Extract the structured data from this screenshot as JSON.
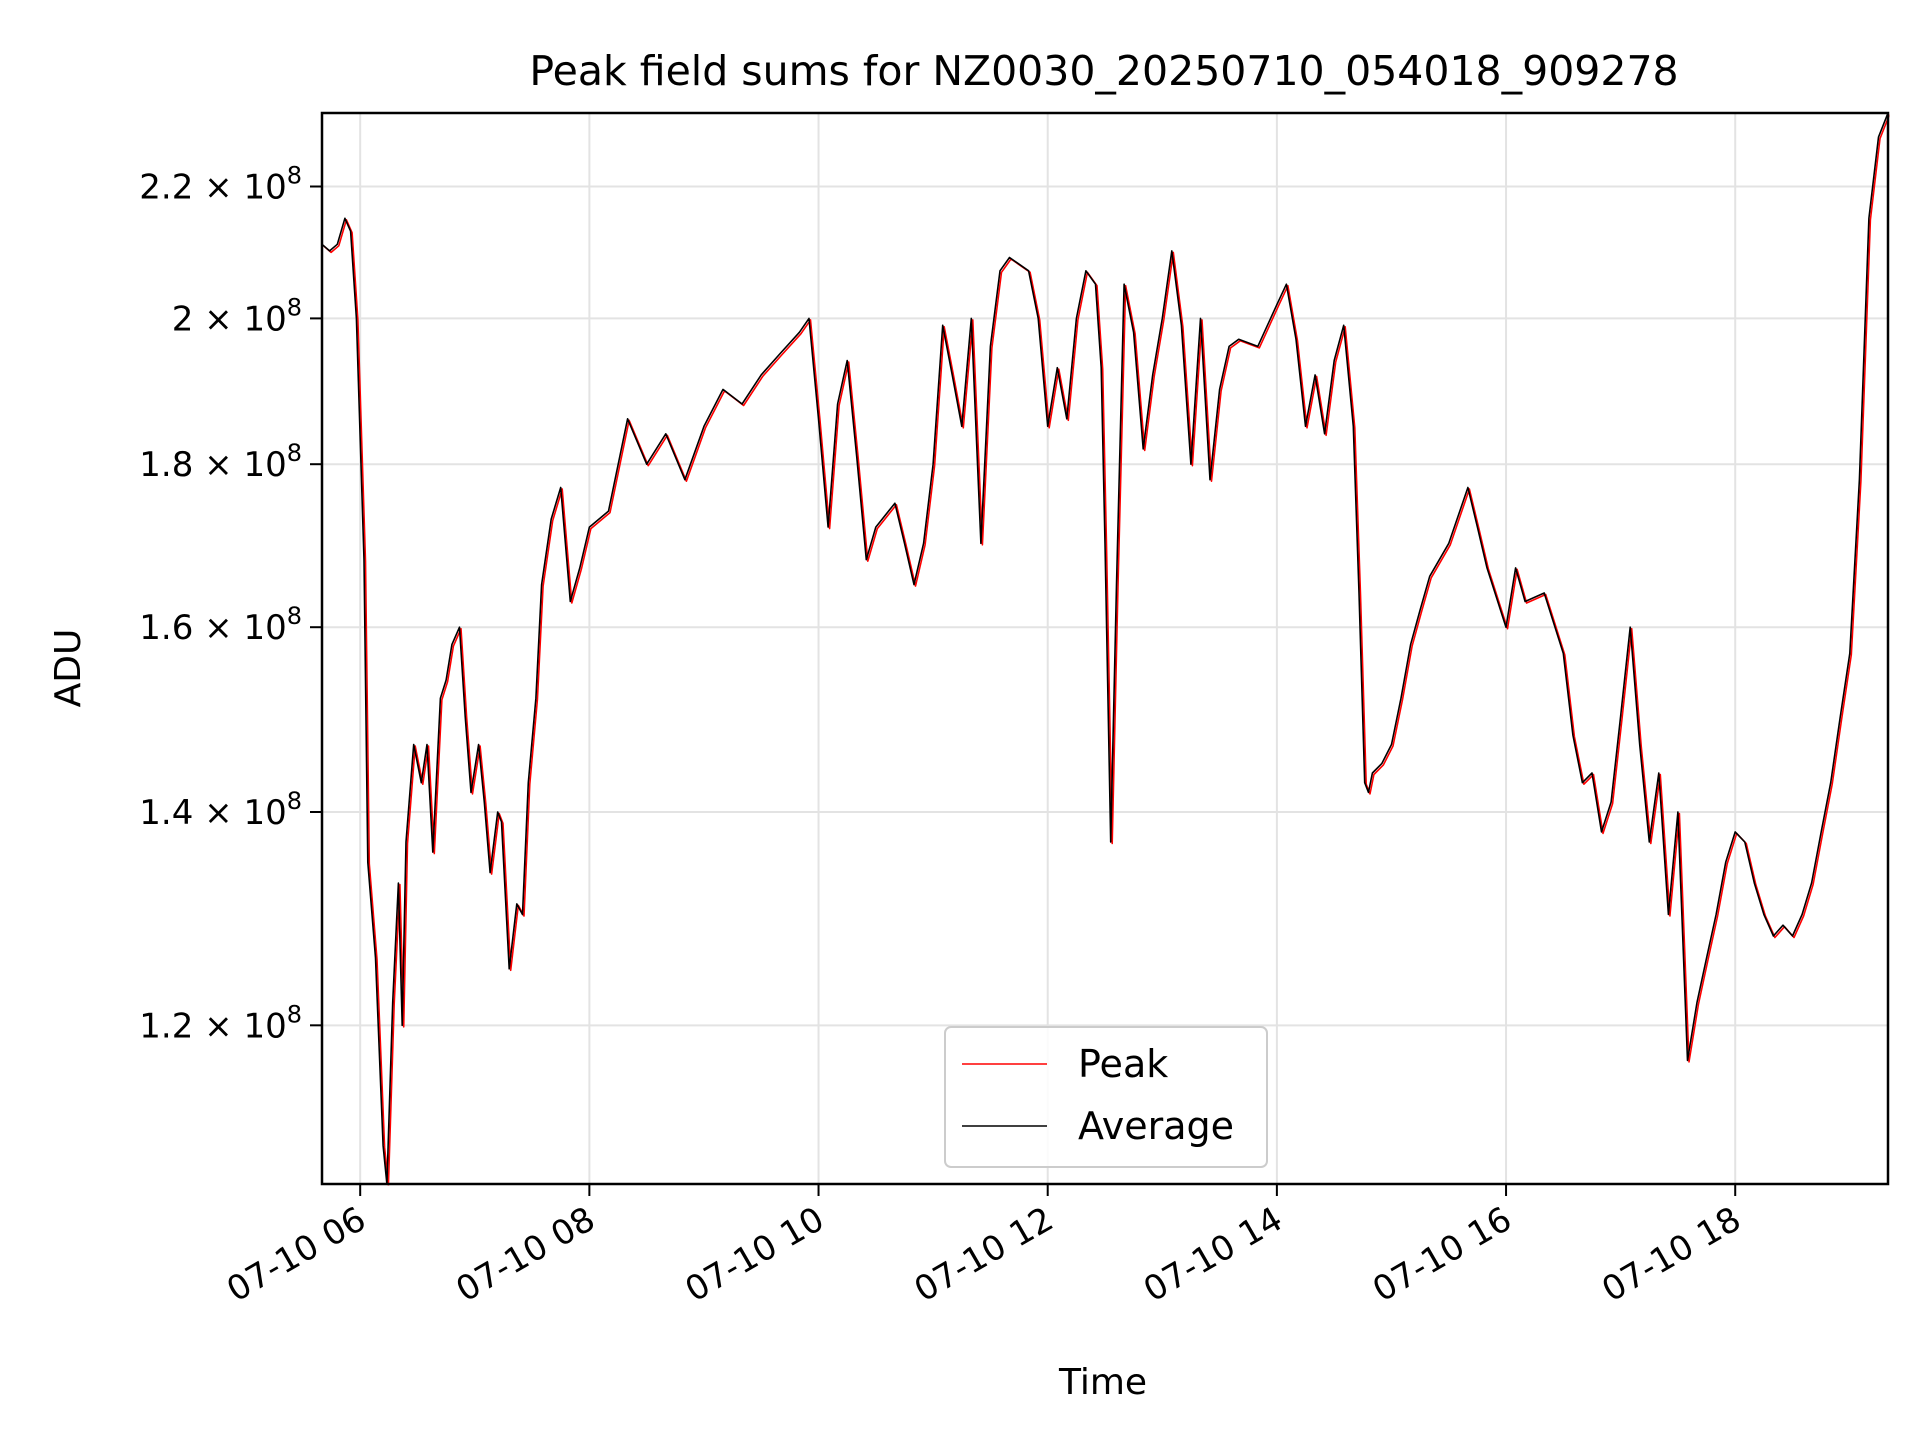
{
  "chart_data": {
    "type": "line",
    "title": "Peak field sums for NZ0030_20250710_054018_909278",
    "xlabel": "Time",
    "ylabel": "ADU",
    "y_scale": "log",
    "ylim": [
      107000000,
      232000000
    ],
    "xlim": [
      "2025-07-10 05:40",
      "2025-07-10 19:20"
    ],
    "grid": true,
    "legend_position": "lower center",
    "x_ticks": [
      {
        "value": "2025-07-10 06:00",
        "label": "07-10 06"
      },
      {
        "value": "2025-07-10 08:00",
        "label": "07-10 08"
      },
      {
        "value": "2025-07-10 10:00",
        "label": "07-10 10"
      },
      {
        "value": "2025-07-10 12:00",
        "label": "07-10 12"
      },
      {
        "value": "2025-07-10 14:00",
        "label": "07-10 14"
      },
      {
        "value": "2025-07-10 16:00",
        "label": "07-10 16"
      },
      {
        "value": "2025-07-10 18:00",
        "label": "07-10 18"
      }
    ],
    "y_ticks": [
      {
        "value": 120000000,
        "mantissa": "1.2",
        "base": "10",
        "exponent": "8"
      },
      {
        "value": 140000000,
        "mantissa": "1.4",
        "base": "10",
        "exponent": "8"
      },
      {
        "value": 160000000,
        "mantissa": "1.6",
        "base": "10",
        "exponent": "8"
      },
      {
        "value": 180000000,
        "mantissa": "1.8",
        "base": "10",
        "exponent": "8"
      },
      {
        "value": 200000000,
        "mantissa": "2",
        "base": "10",
        "exponent": "8"
      },
      {
        "value": 220000000,
        "mantissa": "2.2",
        "base": "10",
        "exponent": "8"
      }
    ],
    "x": [
      "2025-07-10 05:40",
      "2025-07-10 05:44",
      "2025-07-10 05:48",
      "2025-07-10 05:52",
      "2025-07-10 05:55",
      "2025-07-10 05:58",
      "2025-07-10 06:02",
      "2025-07-10 06:04",
      "2025-07-10 06:08",
      "2025-07-10 06:12",
      "2025-07-10 06:14",
      "2025-07-10 06:17",
      "2025-07-10 06:20",
      "2025-07-10 06:22",
      "2025-07-10 06:24",
      "2025-07-10 06:28",
      "2025-07-10 06:32",
      "2025-07-10 06:35",
      "2025-07-10 06:38",
      "2025-07-10 06:42",
      "2025-07-10 06:45",
      "2025-07-10 06:48",
      "2025-07-10 06:52",
      "2025-07-10 06:55",
      "2025-07-10 06:58",
      "2025-07-10 07:02",
      "2025-07-10 07:05",
      "2025-07-10 07:08",
      "2025-07-10 07:12",
      "2025-07-10 07:14",
      "2025-07-10 07:18",
      "2025-07-10 07:22",
      "2025-07-10 07:25",
      "2025-07-10 07:28",
      "2025-07-10 07:32",
      "2025-07-10 07:35",
      "2025-07-10 07:40",
      "2025-07-10 07:45",
      "2025-07-10 07:50",
      "2025-07-10 07:55",
      "2025-07-10 08:00",
      "2025-07-10 08:10",
      "2025-07-10 08:20",
      "2025-07-10 08:30",
      "2025-07-10 08:40",
      "2025-07-10 08:50",
      "2025-07-10 09:00",
      "2025-07-10 09:10",
      "2025-07-10 09:20",
      "2025-07-10 09:30",
      "2025-07-10 09:40",
      "2025-07-10 09:50",
      "2025-07-10 09:55",
      "2025-07-10 10:00",
      "2025-07-10 10:05",
      "2025-07-10 10:10",
      "2025-07-10 10:15",
      "2025-07-10 10:20",
      "2025-07-10 10:25",
      "2025-07-10 10:30",
      "2025-07-10 10:40",
      "2025-07-10 10:45",
      "2025-07-10 10:50",
      "2025-07-10 10:55",
      "2025-07-10 11:00",
      "2025-07-10 11:05",
      "2025-07-10 11:10",
      "2025-07-10 11:15",
      "2025-07-10 11:20",
      "2025-07-10 11:25",
      "2025-07-10 11:30",
      "2025-07-10 11:35",
      "2025-07-10 11:40",
      "2025-07-10 11:50",
      "2025-07-10 11:55",
      "2025-07-10 12:00",
      "2025-07-10 12:05",
      "2025-07-10 12:10",
      "2025-07-10 12:15",
      "2025-07-10 12:20",
      "2025-07-10 12:25",
      "2025-07-10 12:28",
      "2025-07-10 12:30",
      "2025-07-10 12:33",
      "2025-07-10 12:36",
      "2025-07-10 12:40",
      "2025-07-10 12:45",
      "2025-07-10 12:50",
      "2025-07-10 12:55",
      "2025-07-10 13:00",
      "2025-07-10 13:05",
      "2025-07-10 13:10",
      "2025-07-10 13:15",
      "2025-07-10 13:20",
      "2025-07-10 13:25",
      "2025-07-10 13:30",
      "2025-07-10 13:35",
      "2025-07-10 13:40",
      "2025-07-10 13:50",
      "2025-07-10 14:00",
      "2025-07-10 14:05",
      "2025-07-10 14:10",
      "2025-07-10 14:15",
      "2025-07-10 14:20",
      "2025-07-10 14:25",
      "2025-07-10 14:30",
      "2025-07-10 14:35",
      "2025-07-10 14:40",
      "2025-07-10 14:43",
      "2025-07-10 14:46",
      "2025-07-10 14:48",
      "2025-07-10 14:50",
      "2025-07-10 14:55",
      "2025-07-10 15:00",
      "2025-07-10 15:05",
      "2025-07-10 15:10",
      "2025-07-10 15:15",
      "2025-07-10 15:20",
      "2025-07-10 15:30",
      "2025-07-10 15:40",
      "2025-07-10 15:45",
      "2025-07-10 15:50",
      "2025-07-10 16:00",
      "2025-07-10 16:05",
      "2025-07-10 16:10",
      "2025-07-10 16:20",
      "2025-07-10 16:30",
      "2025-07-10 16:35",
      "2025-07-10 16:40",
      "2025-07-10 16:45",
      "2025-07-10 16:50",
      "2025-07-10 16:55",
      "2025-07-10 17:00",
      "2025-07-10 17:05",
      "2025-07-10 17:10",
      "2025-07-10 17:15",
      "2025-07-10 17:20",
      "2025-07-10 17:25",
      "2025-07-10 17:30",
      "2025-07-10 17:35",
      "2025-07-10 17:40",
      "2025-07-10 17:45",
      "2025-07-10 17:50",
      "2025-07-10 17:55",
      "2025-07-10 18:00",
      "2025-07-10 18:05",
      "2025-07-10 18:10",
      "2025-07-10 18:15",
      "2025-07-10 18:20",
      "2025-07-10 18:25",
      "2025-07-10 18:30",
      "2025-07-10 18:35",
      "2025-07-10 18:40",
      "2025-07-10 18:45",
      "2025-07-10 18:50",
      "2025-07-10 18:55",
      "2025-07-10 19:00",
      "2025-07-10 19:05",
      "2025-07-10 19:10",
      "2025-07-10 19:15",
      "2025-07-10 19:20"
    ],
    "series": [
      {
        "name": "Peak",
        "color": "#ff0000",
        "values": [
          211000000,
          210000000,
          211000000,
          215000000,
          213000000,
          200000000,
          168000000,
          135000000,
          126000000,
          110000000,
          107000000,
          122000000,
          133000000,
          120000000,
          137000000,
          147000000,
          143000000,
          147000000,
          136000000,
          152000000,
          154000000,
          158000000,
          160000000,
          150000000,
          142000000,
          147000000,
          141000000,
          134000000,
          140000000,
          139000000,
          125000000,
          131000000,
          130000000,
          143000000,
          152000000,
          165000000,
          173000000,
          177000000,
          163000000,
          167000000,
          172000000,
          174000000,
          186000000,
          180000000,
          184000000,
          178000000,
          185000000,
          190000000,
          188000000,
          192000000,
          195000000,
          198000000,
          200000000,
          186000000,
          172000000,
          188000000,
          194000000,
          181000000,
          168000000,
          172000000,
          175000000,
          170000000,
          165000000,
          170000000,
          180000000,
          199000000,
          192000000,
          185000000,
          200000000,
          170000000,
          196000000,
          207000000,
          209000000,
          207000000,
          200000000,
          185000000,
          193000000,
          186000000,
          200000000,
          207000000,
          205000000,
          193000000,
          170000000,
          137000000,
          165000000,
          205000000,
          198000000,
          182000000,
          192000000,
          200000000,
          210000000,
          199000000,
          180000000,
          200000000,
          178000000,
          190000000,
          196000000,
          197000000,
          196000000,
          202000000,
          205000000,
          197000000,
          185000000,
          192000000,
          184000000,
          194000000,
          199000000,
          185000000,
          164000000,
          143000000,
          142000000,
          144000000,
          145000000,
          147000000,
          152000000,
          158000000,
          162000000,
          166000000,
          170000000,
          177000000,
          172000000,
          167000000,
          160000000,
          167000000,
          163000000,
          164000000,
          157000000,
          148000000,
          143000000,
          144000000,
          138000000,
          141000000,
          150000000,
          160000000,
          147000000,
          137000000,
          144000000,
          130000000,
          140000000,
          117000000,
          122000000,
          126000000,
          130000000,
          135000000,
          138000000,
          137000000,
          133000000,
          130000000,
          128000000,
          129000000,
          128000000,
          130000000,
          133000000,
          138000000,
          143000000,
          150000000,
          157000000,
          178000000,
          215000000,
          228000000,
          232000000
        ]
      },
      {
        "name": "Average",
        "color": "#000000",
        "values": [
          211000000,
          210000000,
          211000000,
          215000000,
          213000000,
          200000000,
          168000000,
          135000000,
          126000000,
          110000000,
          107000000,
          122000000,
          133000000,
          120000000,
          137000000,
          147000000,
          143000000,
          147000000,
          136000000,
          152000000,
          154000000,
          158000000,
          160000000,
          150000000,
          142000000,
          147000000,
          141000000,
          134000000,
          140000000,
          139000000,
          125000000,
          131000000,
          130000000,
          143000000,
          152000000,
          165000000,
          173000000,
          177000000,
          163000000,
          167000000,
          172000000,
          174000000,
          186000000,
          180000000,
          184000000,
          178000000,
          185000000,
          190000000,
          188000000,
          192000000,
          195000000,
          198000000,
          200000000,
          186000000,
          172000000,
          188000000,
          194000000,
          181000000,
          168000000,
          172000000,
          175000000,
          170000000,
          165000000,
          170000000,
          180000000,
          199000000,
          192000000,
          185000000,
          200000000,
          170000000,
          196000000,
          207000000,
          209000000,
          207000000,
          200000000,
          185000000,
          193000000,
          186000000,
          200000000,
          207000000,
          205000000,
          193000000,
          170000000,
          137000000,
          165000000,
          205000000,
          198000000,
          182000000,
          192000000,
          200000000,
          210000000,
          199000000,
          180000000,
          200000000,
          178000000,
          190000000,
          196000000,
          197000000,
          196000000,
          202000000,
          205000000,
          197000000,
          185000000,
          192000000,
          184000000,
          194000000,
          199000000,
          185000000,
          164000000,
          143000000,
          142000000,
          144000000,
          145000000,
          147000000,
          152000000,
          158000000,
          162000000,
          166000000,
          170000000,
          177000000,
          172000000,
          167000000,
          160000000,
          167000000,
          163000000,
          164000000,
          157000000,
          148000000,
          143000000,
          144000000,
          138000000,
          141000000,
          150000000,
          160000000,
          147000000,
          137000000,
          144000000,
          130000000,
          140000000,
          117000000,
          122000000,
          126000000,
          130000000,
          135000000,
          138000000,
          137000000,
          133000000,
          130000000,
          128000000,
          129000000,
          128000000,
          130000000,
          133000000,
          138000000,
          143000000,
          150000000,
          157000000,
          178000000,
          215000000,
          228000000,
          232000000
        ]
      }
    ]
  }
}
